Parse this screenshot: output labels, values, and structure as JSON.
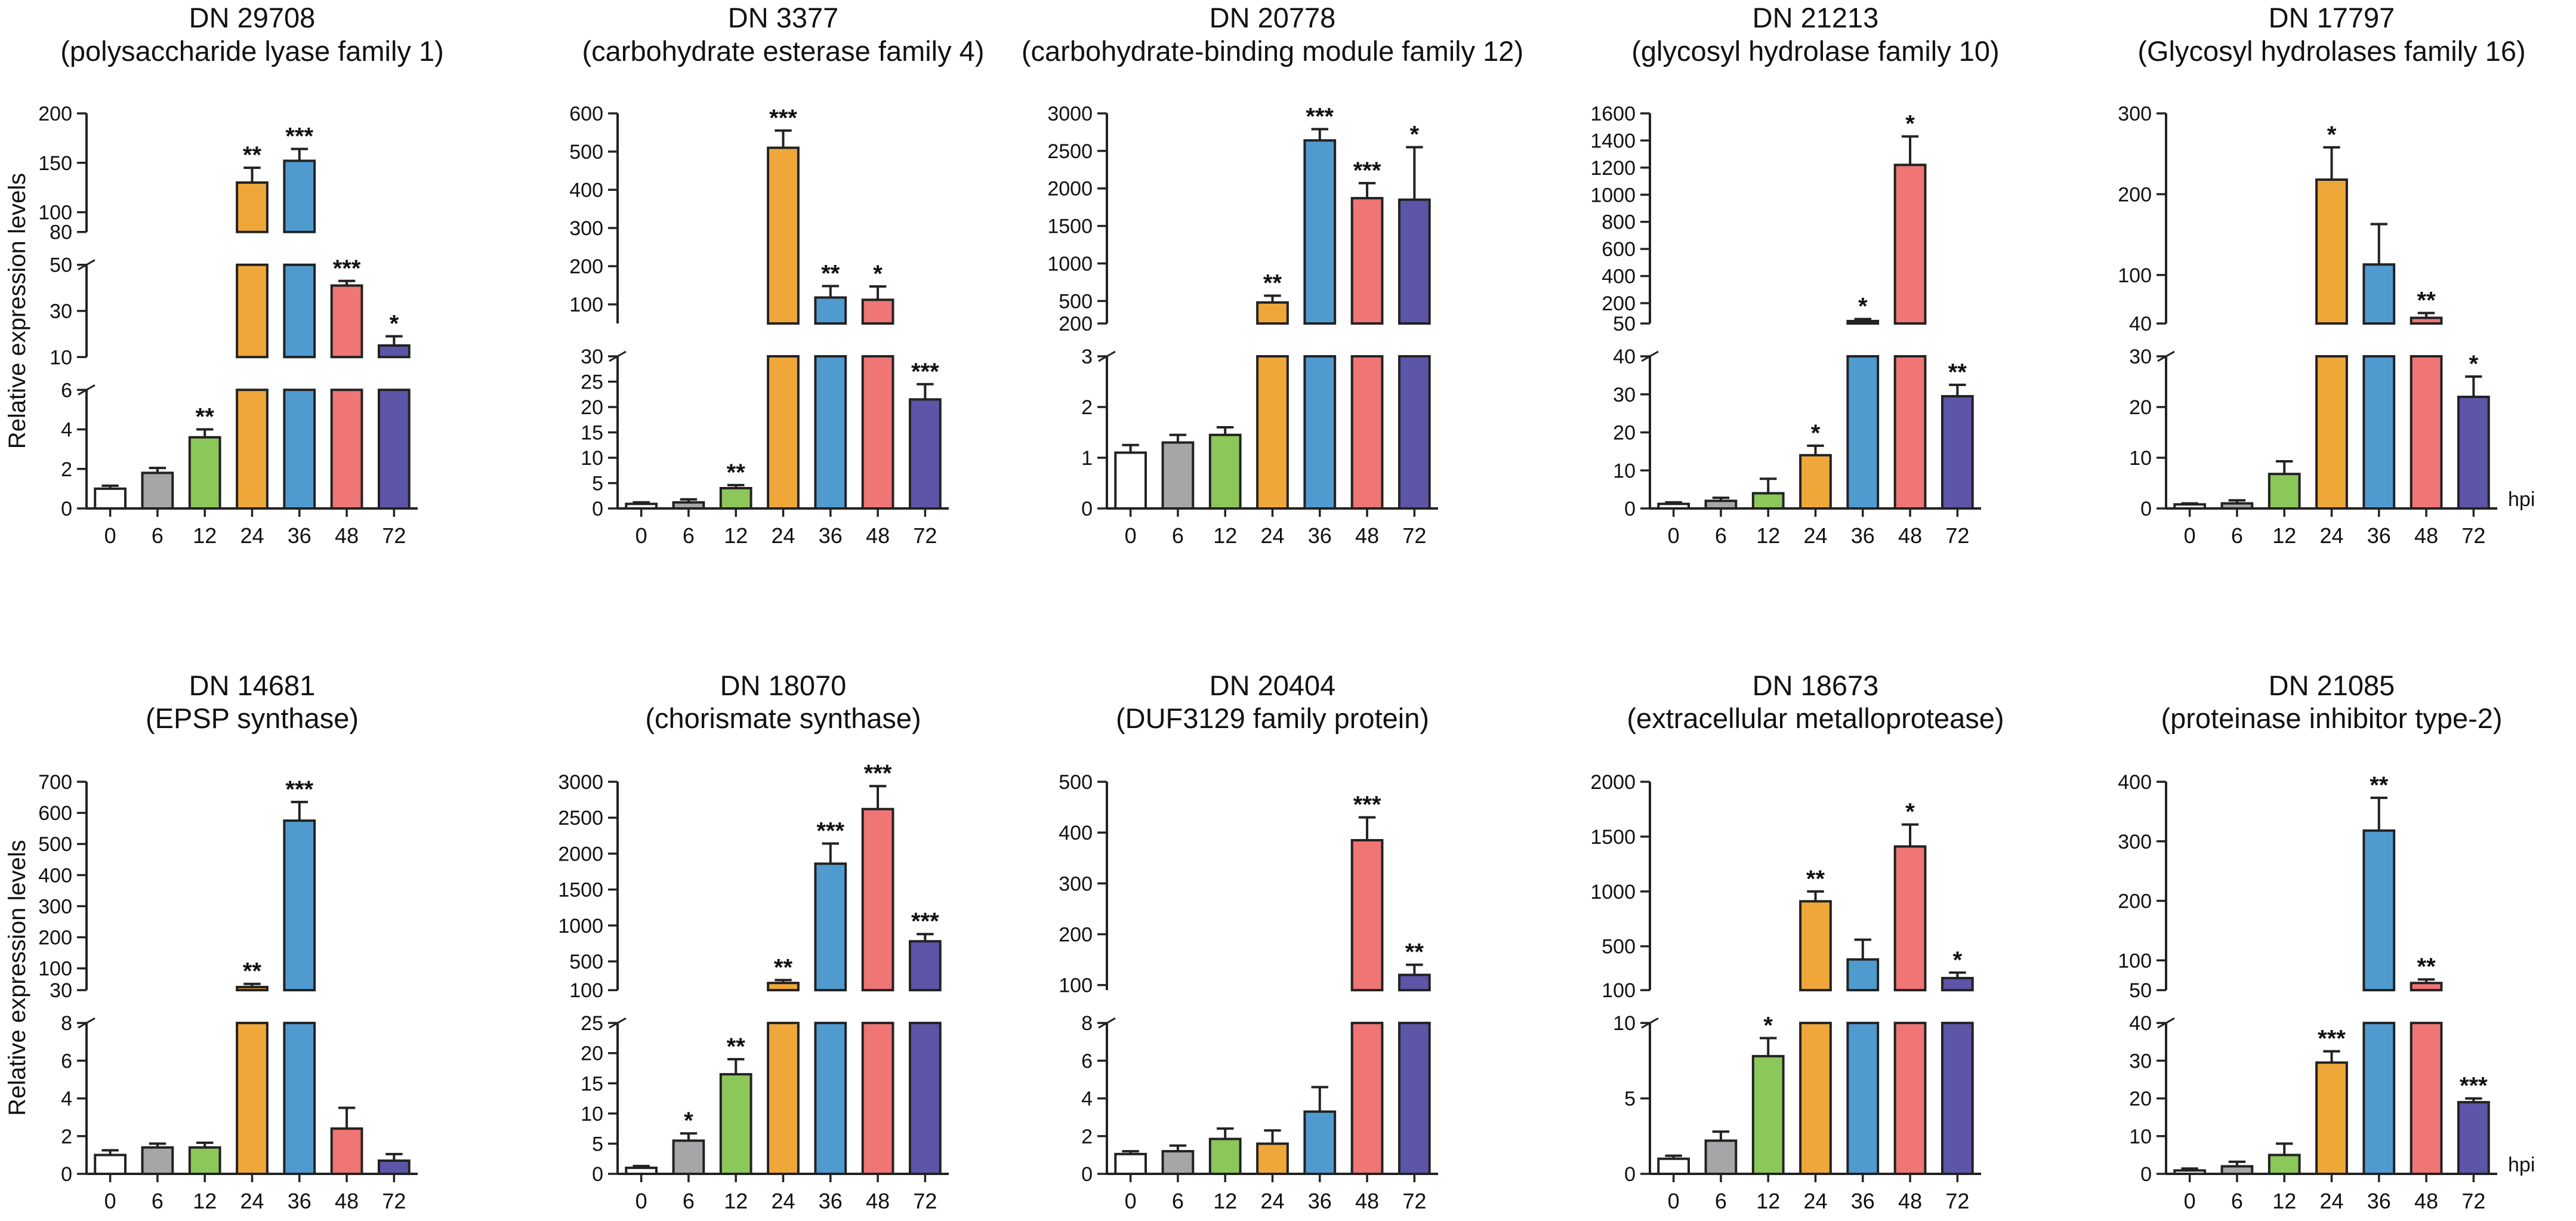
{
  "figure": {
    "y_axis_label": "Relative expression levels",
    "x_unit_label": "hpi",
    "time_points": [
      "0",
      "6",
      "12",
      "24",
      "36",
      "48",
      "72"
    ],
    "bar_colors": [
      "#ffffff",
      "#a6a6a8",
      "#8cc75a",
      "#f0a73a",
      "#4f9bd0",
      "#f07575",
      "#5c55a8"
    ]
  },
  "chart_data": [
    {
      "type": "bar",
      "title": "DN 29708",
      "subtitle": "(polysaccharide lyase family 1)",
      "xlabel": "",
      "ylabel": "Relative expression levels",
      "categories": [
        "0",
        "6",
        "12",
        "24",
        "36",
        "48",
        "72"
      ],
      "values": [
        1,
        1.8,
        3.6,
        130,
        152,
        41,
        15
      ],
      "errors": [
        0.15,
        0.25,
        0.4,
        15,
        12,
        2,
        4
      ],
      "significance": [
        "",
        "",
        "**",
        "**",
        "***",
        "***",
        "*"
      ],
      "broken_y_axis": [
        {
          "ylim": [
            0,
            6
          ],
          "ticks": [
            "0",
            "2",
            "4",
            "6"
          ]
        },
        {
          "ylim": [
            10,
            50
          ],
          "ticks": [
            "10",
            "30",
            "50"
          ]
        },
        {
          "ylim": [
            80,
            200
          ],
          "ticks": [
            "80",
            "100",
            "150",
            "200"
          ]
        }
      ]
    },
    {
      "type": "bar",
      "title": "DN 3377",
      "subtitle": "(carbohydrate esterase family 4)",
      "xlabel": "",
      "ylabel": "",
      "categories": [
        "0",
        "6",
        "12",
        "24",
        "36",
        "48",
        "72"
      ],
      "values": [
        0.9,
        1.2,
        4,
        510,
        118,
        112,
        21.5
      ],
      "errors": [
        0.3,
        0.6,
        0.6,
        45,
        30,
        35,
        3
      ],
      "significance": [
        "",
        "",
        "**",
        "***",
        "**",
        "*",
        "***"
      ],
      "broken_y_axis": [
        {
          "ylim": [
            0,
            30
          ],
          "ticks": [
            "0",
            "5",
            "10",
            "15",
            "20",
            "25",
            "30"
          ]
        },
        {
          "ylim": [
            50,
            600
          ],
          "ticks": [
            "100",
            "200",
            "300",
            "400",
            "500",
            "600"
          ]
        }
      ]
    },
    {
      "type": "bar",
      "title": "DN 20778",
      "subtitle": "(carbohydrate-binding module family 12)",
      "xlabel": "",
      "ylabel": "",
      "categories": [
        "0",
        "6",
        "12",
        "24",
        "36",
        "48",
        "72"
      ],
      "values": [
        1.1,
        1.3,
        1.45,
        480,
        2640,
        1870,
        1850
      ],
      "errors": [
        0.15,
        0.15,
        0.15,
        90,
        150,
        200,
        700
      ],
      "significance": [
        "",
        "",
        "",
        "**",
        "***",
        "***",
        "*"
      ],
      "broken_y_axis": [
        {
          "ylim": [
            0,
            3
          ],
          "ticks": [
            "0",
            "1",
            "2",
            "3"
          ]
        },
        {
          "ylim": [
            200,
            3000
          ],
          "ticks": [
            "200",
            "500",
            "1000",
            "1500",
            "2000",
            "2500",
            "3000"
          ]
        }
      ]
    },
    {
      "type": "bar",
      "title": "DN 21213",
      "subtitle": "(glycosyl hydrolase family 10)",
      "xlabel": "",
      "ylabel": "",
      "categories": [
        "0",
        "6",
        "12",
        "24",
        "36",
        "48",
        "72"
      ],
      "values": [
        1.2,
        2,
        4,
        14,
        68,
        1220,
        29.5
      ],
      "errors": [
        0.4,
        0.8,
        3.8,
        2.5,
        15,
        210,
        3
      ],
      "significance": [
        "",
        "",
        "",
        "*",
        "*",
        "*",
        "**"
      ],
      "broken_y_axis": [
        {
          "ylim": [
            0,
            40
          ],
          "ticks": [
            "0",
            "10",
            "20",
            "30",
            "40"
          ]
        },
        {
          "ylim": [
            50,
            1600
          ],
          "ticks": [
            "50",
            "200",
            "400",
            "600",
            "800",
            "1000",
            "1200",
            "1400",
            "1600"
          ]
        }
      ]
    },
    {
      "type": "bar",
      "title": "DN 17797",
      "subtitle": "(Glycosyl hydrolases family 16)",
      "xlabel": "hpi",
      "ylabel": "",
      "categories": [
        "0",
        "6",
        "12",
        "24",
        "36",
        "48",
        "72"
      ],
      "values": [
        0.8,
        1,
        6.8,
        218,
        113,
        47,
        22
      ],
      "errors": [
        0.2,
        0.6,
        2.5,
        40,
        50,
        6,
        4
      ],
      "significance": [
        "",
        "",
        "",
        "*",
        "",
        "**",
        "*"
      ],
      "broken_y_axis": [
        {
          "ylim": [
            0,
            30
          ],
          "ticks": [
            "0",
            "10",
            "20",
            "30"
          ]
        },
        {
          "ylim": [
            40,
            300
          ],
          "ticks": [
            "40",
            "100",
            "200",
            "300"
          ]
        }
      ]
    },
    {
      "type": "bar",
      "title": "DN 14681",
      "subtitle": "(EPSP synthase)",
      "xlabel": "",
      "ylabel": "Relative expression levels",
      "categories": [
        "0",
        "6",
        "12",
        "24",
        "36",
        "48",
        "72"
      ],
      "values": [
        1,
        1.4,
        1.4,
        40,
        575,
        2.4,
        0.7
      ],
      "errors": [
        0.25,
        0.2,
        0.25,
        10,
        60,
        1.1,
        0.35
      ],
      "significance": [
        "",
        "",
        "",
        "**",
        "***",
        "",
        ""
      ],
      "broken_y_axis": [
        {
          "ylim": [
            0,
            8
          ],
          "ticks": [
            "0",
            "2",
            "4",
            "6",
            "8"
          ]
        },
        {
          "ylim": [
            30,
            700
          ],
          "ticks": [
            "30",
            "100",
            "200",
            "300",
            "400",
            "500",
            "600",
            "700"
          ]
        }
      ]
    },
    {
      "type": "bar",
      "title": "DN 18070",
      "subtitle": "(chorismate synthase)",
      "xlabel": "",
      "ylabel": "",
      "categories": [
        "0",
        "6",
        "12",
        "24",
        "36",
        "48",
        "72"
      ],
      "values": [
        1,
        5.5,
        16.5,
        200,
        1860,
        2620,
        780
      ],
      "errors": [
        0.3,
        1.2,
        2.5,
        40,
        280,
        320,
        100
      ],
      "significance": [
        "",
        "*",
        "**",
        "**",
        "***",
        "***",
        "***"
      ],
      "broken_y_axis": [
        {
          "ylim": [
            0,
            25
          ],
          "ticks": [
            "0",
            "5",
            "10",
            "15",
            "20",
            "25"
          ]
        },
        {
          "ylim": [
            100,
            3000
          ],
          "ticks": [
            "100",
            "500",
            "1000",
            "1500",
            "2000",
            "2500",
            "3000"
          ]
        }
      ]
    },
    {
      "type": "bar",
      "title": "DN 20404",
      "subtitle": "(DUF3129 family protein)",
      "xlabel": "",
      "ylabel": "",
      "categories": [
        "0",
        "6",
        "12",
        "24",
        "36",
        "48",
        "72"
      ],
      "values": [
        1.05,
        1.2,
        1.85,
        1.6,
        3.3,
        385,
        120
      ],
      "errors": [
        0.15,
        0.3,
        0.55,
        0.7,
        1.3,
        45,
        20
      ],
      "significance": [
        "",
        "",
        "",
        "",
        "",
        "***",
        "**"
      ],
      "broken_y_axis": [
        {
          "ylim": [
            0,
            8
          ],
          "ticks": [
            "0",
            "2",
            "4",
            "6",
            "8"
          ]
        },
        {
          "ylim": [
            90,
            500
          ],
          "ticks": [
            "100",
            "200",
            "300",
            "400",
            "500"
          ]
        }
      ]
    },
    {
      "type": "bar",
      "title": "DN 18673",
      "subtitle": "(extracellular metalloprotease)",
      "xlabel": "",
      "ylabel": "",
      "categories": [
        "0",
        "6",
        "12",
        "24",
        "36",
        "48",
        "72"
      ],
      "values": [
        1,
        2.2,
        7.8,
        910,
        380,
        1410,
        210
      ],
      "errors": [
        0.2,
        0.6,
        1.2,
        90,
        180,
        200,
        50
      ],
      "significance": [
        "",
        "",
        "*",
        "**",
        "",
        "*",
        "*"
      ],
      "broken_y_axis": [
        {
          "ylim": [
            0,
            10
          ],
          "ticks": [
            "0",
            "5",
            "10"
          ]
        },
        {
          "ylim": [
            100,
            2000
          ],
          "ticks": [
            "100",
            "500",
            "1000",
            "1500",
            "2000"
          ]
        }
      ]
    },
    {
      "type": "bar",
      "title": "DN 21085",
      "subtitle": "(proteinase inhibitor type-2)",
      "xlabel": "hpi",
      "ylabel": "",
      "categories": [
        "0",
        "6",
        "12",
        "24",
        "36",
        "48",
        "72"
      ],
      "values": [
        0.9,
        2,
        5,
        29.5,
        318,
        62,
        19
      ],
      "errors": [
        0.5,
        1.2,
        3,
        3,
        55,
        6,
        1
      ],
      "significance": [
        "",
        "",
        "",
        "***",
        "**",
        "**",
        "***"
      ],
      "broken_y_axis": [
        {
          "ylim": [
            0,
            40
          ],
          "ticks": [
            "0",
            "10",
            "20",
            "30",
            "40"
          ]
        },
        {
          "ylim": [
            50,
            400
          ],
          "ticks": [
            "50",
            "100",
            "200",
            "300",
            "400"
          ]
        }
      ]
    }
  ]
}
